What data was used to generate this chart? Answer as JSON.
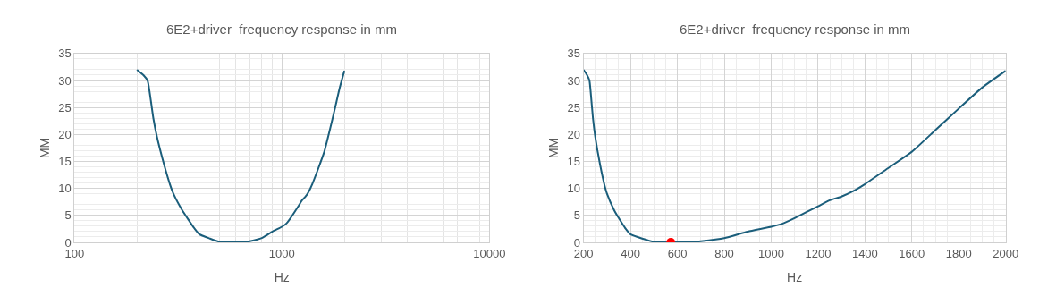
{
  "chart_data": [
    {
      "type": "line",
      "title": "6E2+driver  frequency response in mm",
      "xlabel": "Hz",
      "ylabel": "MM",
      "log": "x",
      "xlim": [
        100,
        10000
      ],
      "xticks": [
        100,
        1000,
        10000
      ],
      "ylim": [
        0,
        35
      ],
      "yticks": [
        0,
        5,
        10,
        15,
        20,
        25,
        30,
        35
      ],
      "grid": true,
      "marker": "none",
      "line_style": "solid",
      "x": [
        200,
        215,
        225,
        230,
        240,
        250,
        270,
        290,
        300,
        330,
        350,
        380,
        400,
        450,
        500,
        550,
        600,
        650,
        700,
        800,
        900,
        1000,
        1050,
        1100,
        1200,
        1250,
        1300,
        1350,
        1400,
        1500,
        1600,
        1700,
        1800,
        1900,
        2000
      ],
      "series": [
        {
          "color": "#1b5e7b",
          "values": [
            32,
            31,
            30,
            28,
            23,
            19.5,
            14.5,
            10.5,
            9,
            6,
            4.5,
            2.5,
            1.5,
            0.7,
            0.1,
            0,
            0,
            0,
            0.2,
            0.8,
            2,
            2.9,
            3.5,
            4.5,
            6.7,
            7.8,
            8.5,
            9.5,
            10.8,
            13.8,
            16.8,
            20.8,
            24.8,
            28.7,
            31.8
          ]
        }
      ]
    },
    {
      "type": "line",
      "title": "6E2+driver  frequency response in mm",
      "xlabel": "Hz",
      "ylabel": "MM",
      "xlim": [
        200,
        2000
      ],
      "xticks": [
        200,
        400,
        600,
        800,
        1000,
        1200,
        1400,
        1600,
        1800,
        2000
      ],
      "ylim": [
        0,
        35
      ],
      "yticks": [
        0,
        5,
        10,
        15,
        20,
        25,
        30,
        35
      ],
      "grid": true,
      "marker": "none",
      "line_style": "solid",
      "x": [
        200,
        215,
        225,
        230,
        240,
        250,
        270,
        290,
        300,
        330,
        350,
        380,
        400,
        450,
        500,
        550,
        600,
        650,
        700,
        800,
        900,
        1000,
        1050,
        1100,
        1200,
        1250,
        1300,
        1350,
        1400,
        1500,
        1600,
        1700,
        1800,
        1900,
        2000
      ],
      "series": [
        {
          "color": "#1b5e7b",
          "values": [
            32,
            31,
            30,
            28,
            23,
            19.5,
            14.5,
            10.5,
            9,
            6,
            4.5,
            2.5,
            1.5,
            0.7,
            0.1,
            0,
            0,
            0,
            0.2,
            0.8,
            2,
            2.9,
            3.5,
            4.5,
            6.7,
            7.8,
            8.5,
            9.5,
            10.8,
            13.8,
            16.8,
            20.8,
            24.8,
            28.7,
            31.8
          ]
        },
        {
          "type": "scatter",
          "color": "#ff0000",
          "marker": "circle",
          "x": [
            572
          ],
          "values": [
            0
          ]
        }
      ]
    }
  ]
}
